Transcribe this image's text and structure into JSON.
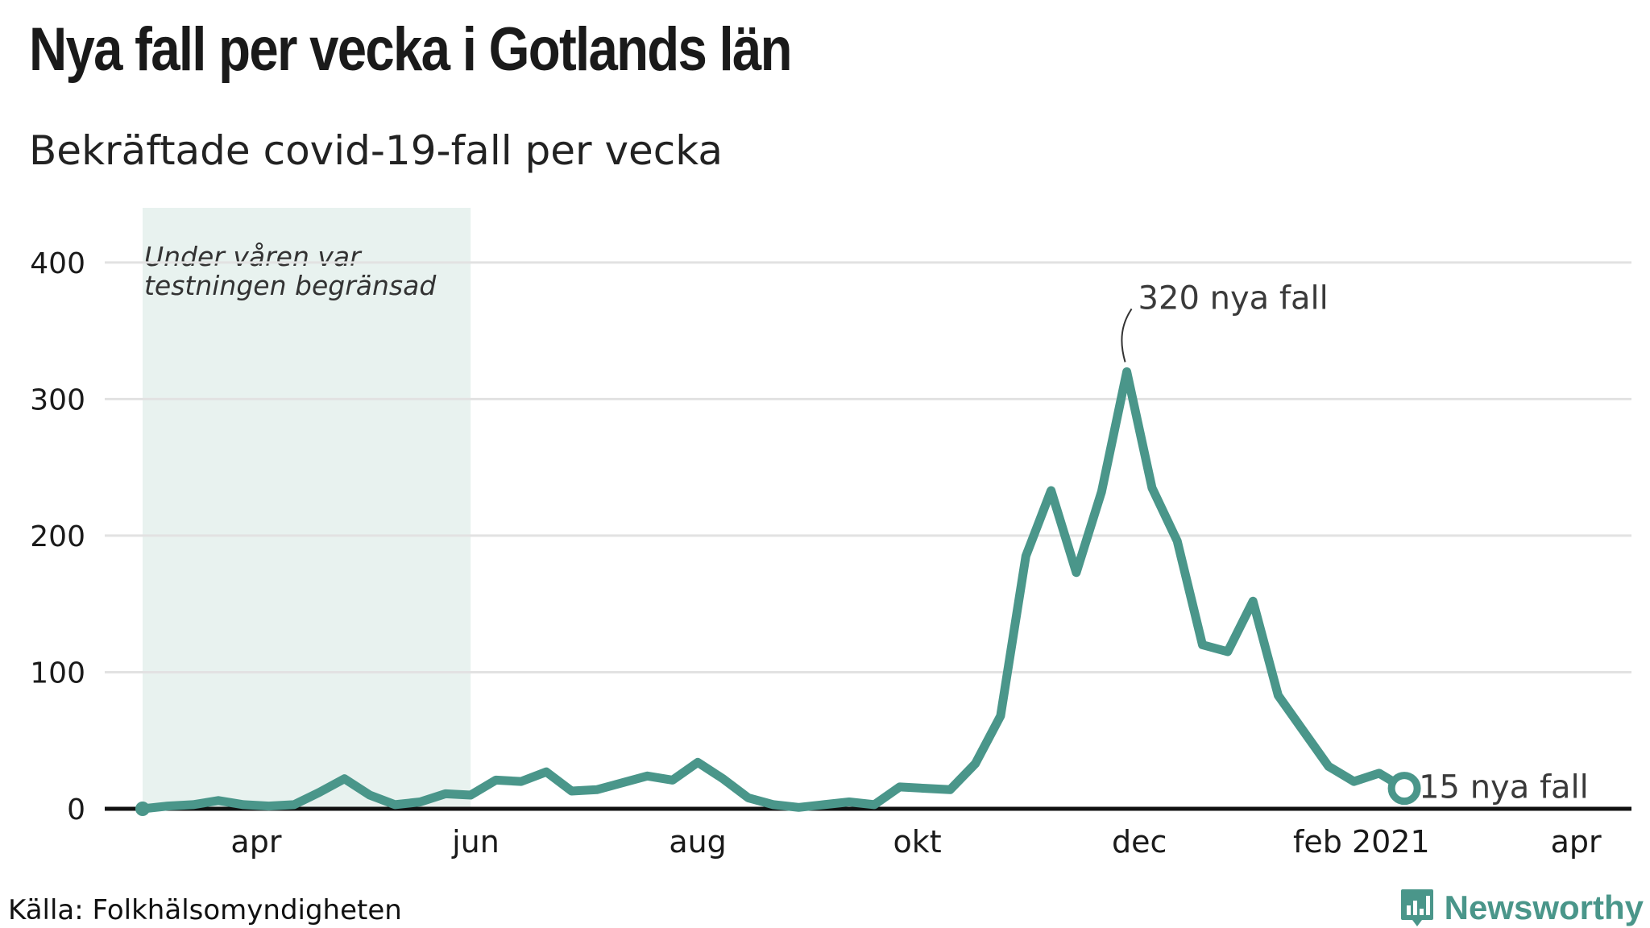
{
  "title": "Nya fall per vecka i Gotlands län",
  "subtitle": "Bekräftade covid-19-fall per vecka",
  "source": "Källa: Folkhälsomyndigheten",
  "brand": {
    "name": "Newsworthy",
    "logo": "newsworthy-logo-icon"
  },
  "colors": {
    "line": "#4a968a",
    "shade": "#e8f2ef",
    "grid": "#e2e2e2",
    "axis": "#111111"
  },
  "chart_data": {
    "type": "line",
    "title": "Nya fall per vecka i Gotlands län",
    "xlabel": "",
    "ylabel": "",
    "ylim": [
      0,
      440
    ],
    "yticks": [
      0,
      100,
      200,
      300,
      400
    ],
    "x_start_week": 11,
    "x_start_year": 2020,
    "xticks": [
      {
        "label": "apr",
        "week": 15.5
      },
      {
        "label": "jun",
        "week": 24.2
      },
      {
        "label": "aug",
        "week": 33.0
      },
      {
        "label": "okt",
        "week": 41.7
      },
      {
        "label": "dec",
        "week": 50.5
      },
      {
        "label": "feb 2021",
        "week": 59.3
      },
      {
        "label": "apr",
        "week": 67.8
      }
    ],
    "x_domain": [
      9.5,
      70
    ],
    "series": [
      {
        "name": "Nya fall",
        "values": [
          0,
          2,
          3,
          6,
          3,
          2,
          3,
          12,
          22,
          10,
          3,
          5,
          11,
          10,
          21,
          20,
          27,
          13,
          14,
          19,
          24,
          21,
          34,
          22,
          8,
          3,
          1,
          3,
          5,
          3,
          16,
          15,
          14,
          33,
          68,
          185,
          233,
          173,
          232,
          320,
          235,
          196,
          120,
          115,
          152,
          83,
          57,
          31,
          20,
          26,
          15
        ]
      }
    ],
    "shaded_region": {
      "from_week": 11,
      "to_week": 24,
      "label_lines": [
        "Under våren var",
        "testningen begränsad"
      ]
    },
    "annotations": [
      {
        "text": "320 nya fall",
        "value": 320,
        "type": "peak"
      },
      {
        "text": "15 nya fall",
        "value": 15,
        "type": "last"
      }
    ]
  }
}
